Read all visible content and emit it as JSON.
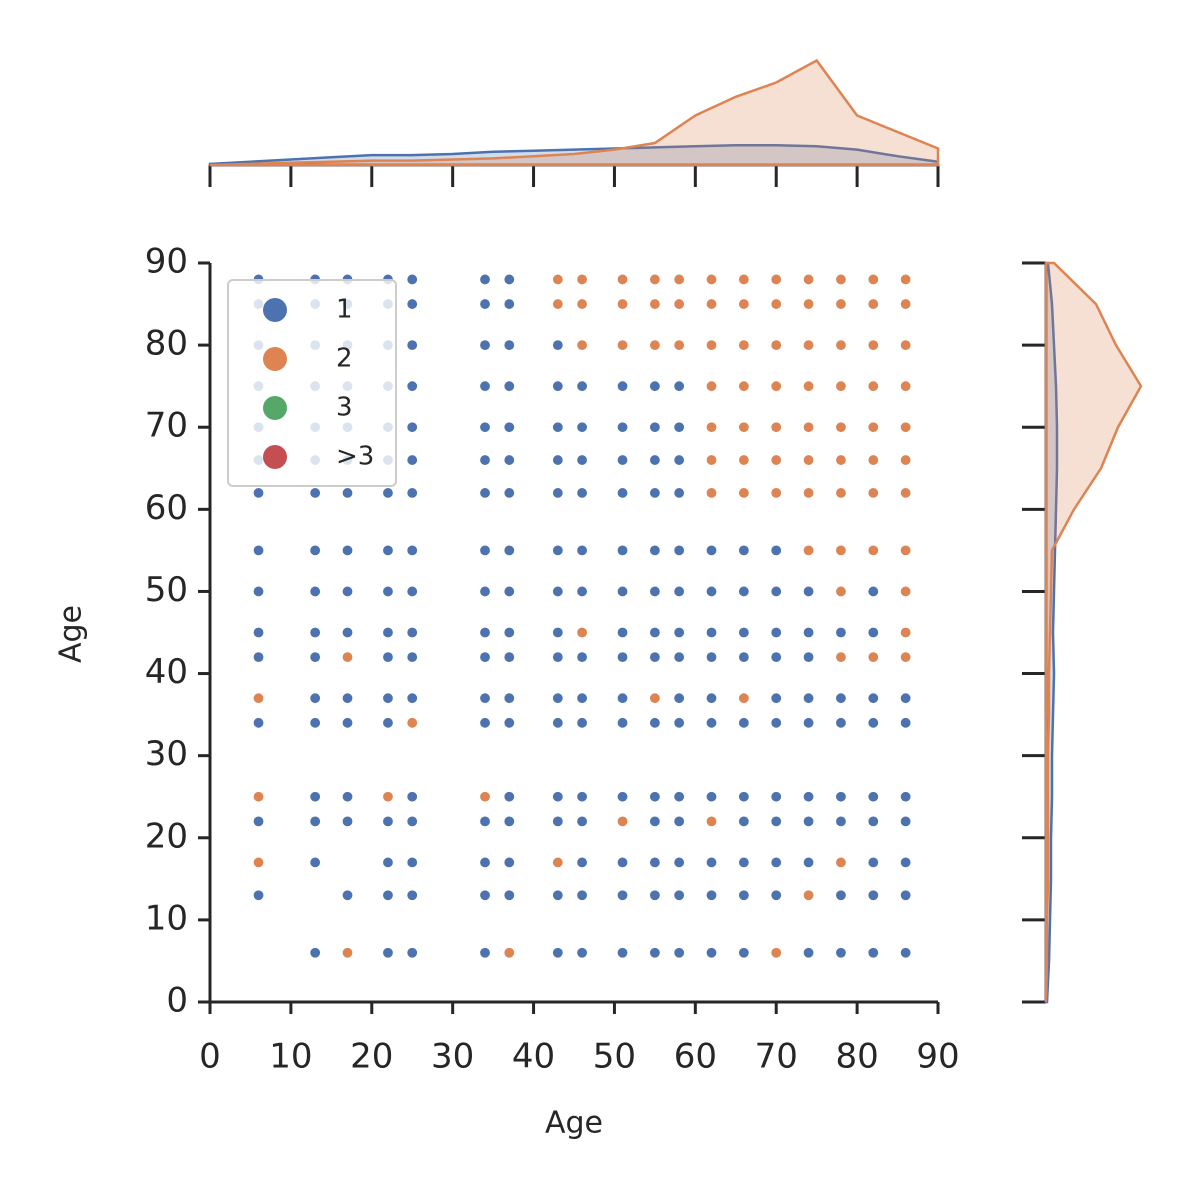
{
  "chart_data": {
    "type": "scatter",
    "x_label": "Age",
    "y_label": "Age",
    "xlim": [
      0,
      90
    ],
    "ylim": [
      0,
      90
    ],
    "xticks": [
      0,
      10,
      20,
      30,
      40,
      50,
      60,
      70,
      80,
      90
    ],
    "yticks": [
      0,
      10,
      20,
      30,
      40,
      50,
      60,
      70,
      80,
      90
    ],
    "legend_position": "upper left",
    "series": [
      {
        "name": "1",
        "color": "#4c72b0",
        "x": [
          6,
          13,
          17,
          22,
          25,
          34,
          37,
          6,
          13,
          17,
          22,
          25,
          34,
          37,
          6,
          13,
          17,
          22,
          25,
          34,
          37,
          43,
          6,
          13,
          17,
          22,
          25,
          34,
          37,
          43,
          46,
          51,
          55,
          58,
          6,
          13,
          17,
          22,
          25,
          34,
          37,
          43,
          46,
          51,
          55,
          58,
          6,
          13,
          17,
          22,
          25,
          34,
          37,
          43,
          46,
          51,
          55,
          58,
          6,
          13,
          17,
          22,
          25,
          34,
          37,
          43,
          46,
          51,
          55,
          58,
          6,
          13,
          17,
          22,
          25,
          34,
          37,
          43,
          46,
          51,
          55,
          58,
          62,
          66,
          70,
          6,
          13,
          17,
          22,
          25,
          34,
          37,
          43,
          46,
          51,
          55,
          58,
          62,
          66,
          70,
          74,
          82,
          6,
          13,
          17,
          22,
          25,
          34,
          37,
          43,
          51,
          55,
          58,
          62,
          66,
          70,
          74,
          78,
          82,
          6,
          13,
          22,
          25,
          34,
          37,
          43,
          46,
          51,
          55,
          58,
          62,
          66,
          70,
          74,
          13,
          17,
          22,
          25,
          34,
          37,
          43,
          46,
          51,
          58,
          62,
          70,
          74,
          78,
          82,
          86,
          6,
          13,
          17,
          22,
          34,
          37,
          43,
          46,
          51,
          55,
          58,
          62,
          66,
          70,
          74,
          78,
          82,
          86,
          13,
          17,
          25,
          37,
          43,
          46,
          51,
          55,
          58,
          62,
          66,
          70,
          74,
          78,
          82,
          86,
          6,
          13,
          17,
          22,
          25,
          34,
          37,
          43,
          46,
          55,
          58,
          66,
          70,
          74,
          78,
          82,
          86,
          13,
          22,
          25,
          34,
          37,
          46,
          51,
          55,
          58,
          62,
          66,
          70,
          74,
          82,
          86,
          6,
          17,
          22,
          25,
          34,
          37,
          43,
          46,
          51,
          55,
          58,
          62,
          66,
          70,
          78,
          82,
          86,
          13,
          22,
          25,
          34,
          43,
          46,
          51,
          55,
          58,
          62,
          66,
          74,
          78,
          82,
          86
        ],
        "values": [
          88,
          88,
          88,
          88,
          88,
          88,
          88,
          85,
          85,
          85,
          85,
          85,
          85,
          85,
          80,
          80,
          80,
          80,
          80,
          80,
          80,
          80,
          75,
          75,
          75,
          75,
          75,
          75,
          75,
          75,
          75,
          75,
          75,
          75,
          70,
          70,
          70,
          70,
          70,
          70,
          70,
          70,
          70,
          70,
          70,
          70,
          66,
          66,
          66,
          66,
          66,
          66,
          66,
          66,
          66,
          66,
          66,
          66,
          62,
          62,
          62,
          62,
          62,
          62,
          62,
          62,
          62,
          62,
          62,
          62,
          55,
          55,
          55,
          55,
          55,
          55,
          55,
          55,
          55,
          55,
          55,
          55,
          55,
          55,
          55,
          50,
          50,
          50,
          50,
          50,
          50,
          50,
          50,
          50,
          50,
          50,
          50,
          50,
          50,
          50,
          50,
          50,
          45,
          45,
          45,
          45,
          45,
          45,
          45,
          45,
          45,
          45,
          45,
          45,
          45,
          45,
          45,
          45,
          45,
          42,
          42,
          42,
          42,
          42,
          42,
          42,
          42,
          42,
          42,
          42,
          42,
          42,
          42,
          42,
          37,
          37,
          37,
          37,
          37,
          37,
          37,
          37,
          37,
          37,
          37,
          37,
          37,
          37,
          37,
          37,
          34,
          34,
          34,
          34,
          34,
          34,
          34,
          34,
          34,
          34,
          34,
          34,
          34,
          34,
          34,
          34,
          34,
          34,
          25,
          25,
          25,
          25,
          25,
          25,
          25,
          25,
          25,
          25,
          25,
          25,
          25,
          25,
          25,
          25,
          22,
          22,
          22,
          22,
          22,
          22,
          22,
          22,
          22,
          22,
          22,
          22,
          22,
          22,
          22,
          22,
          22,
          17,
          17,
          17,
          17,
          17,
          17,
          17,
          17,
          17,
          17,
          17,
          17,
          17,
          17,
          17,
          13,
          13,
          13,
          13,
          13,
          13,
          13,
          13,
          13,
          13,
          13,
          13,
          13,
          13,
          13,
          13,
          13,
          6,
          6,
          6,
          6,
          6,
          6,
          6,
          6,
          6,
          6,
          6,
          6,
          6,
          6,
          6
        ]
      },
      {
        "name": "2",
        "color": "#dd8452",
        "x": [
          43,
          46,
          51,
          55,
          58,
          62,
          66,
          70,
          74,
          78,
          82,
          86,
          43,
          46,
          51,
          55,
          58,
          62,
          66,
          70,
          74,
          78,
          82,
          86,
          46,
          51,
          55,
          58,
          62,
          66,
          70,
          74,
          78,
          82,
          86,
          62,
          66,
          70,
          74,
          78,
          82,
          86,
          62,
          66,
          70,
          74,
          78,
          82,
          86,
          62,
          66,
          70,
          74,
          78,
          82,
          86,
          62,
          66,
          70,
          74,
          78,
          82,
          86,
          74,
          78,
          82,
          86,
          78,
          86,
          46,
          86,
          17,
          78,
          82,
          86,
          6,
          55,
          66,
          25,
          6,
          22,
          34,
          51,
          62,
          6,
          43,
          78,
          74,
          17,
          37,
          70
        ],
        "values": [
          88,
          88,
          88,
          88,
          88,
          88,
          88,
          88,
          88,
          88,
          88,
          88,
          85,
          85,
          85,
          85,
          85,
          85,
          85,
          85,
          85,
          85,
          85,
          85,
          80,
          80,
          80,
          80,
          80,
          80,
          80,
          80,
          80,
          80,
          80,
          75,
          75,
          75,
          75,
          75,
          75,
          75,
          70,
          70,
          70,
          70,
          70,
          70,
          70,
          66,
          66,
          66,
          66,
          66,
          66,
          66,
          62,
          62,
          62,
          62,
          62,
          62,
          62,
          55,
          55,
          55,
          55,
          50,
          50,
          45,
          45,
          42,
          42,
          42,
          42,
          37,
          37,
          37,
          34,
          25,
          25,
          25,
          22,
          22,
          17,
          17,
          17,
          13,
          6,
          6,
          6
        ]
      },
      {
        "name": "3",
        "color": "#55a868",
        "x": [],
        "values": []
      },
      {
        "name": ">3",
        "color": "#c44e52",
        "x": [],
        "values": []
      }
    ],
    "marginal_grid": [
      0,
      5,
      10,
      15,
      20,
      25,
      30,
      35,
      40,
      45,
      50,
      55,
      60,
      65,
      70,
      75,
      80,
      85,
      90
    ],
    "marginal_x": [
      [
        0.01,
        0.03,
        0.05,
        0.07,
        0.09,
        0.09,
        0.1,
        0.12,
        0.13,
        0.14,
        0.15,
        0.16,
        0.17,
        0.18,
        0.18,
        0.17,
        0.14,
        0.08,
        0.03
      ],
      [
        0,
        0.01,
        0.02,
        0.03,
        0.04,
        0.04,
        0.05,
        0.06,
        0.08,
        0.1,
        0.14,
        0.2,
        0.45,
        0.62,
        0.75,
        0.95,
        0.45,
        0.3,
        0.15
      ]
    ],
    "marginal_y": [
      [
        0.01,
        0.03,
        0.04,
        0.05,
        0.05,
        0.06,
        0.06,
        0.07,
        0.08,
        0.07,
        0.08,
        0.09,
        0.1,
        0.11,
        0.11,
        0.1,
        0.08,
        0.06,
        0.02
      ],
      [
        0,
        0.01,
        0.01,
        0.02,
        0.02,
        0.02,
        0.02,
        0.03,
        0.03,
        0.04,
        0.05,
        0.06,
        0.28,
        0.55,
        0.72,
        0.95,
        0.7,
        0.5,
        0.08
      ]
    ]
  }
}
